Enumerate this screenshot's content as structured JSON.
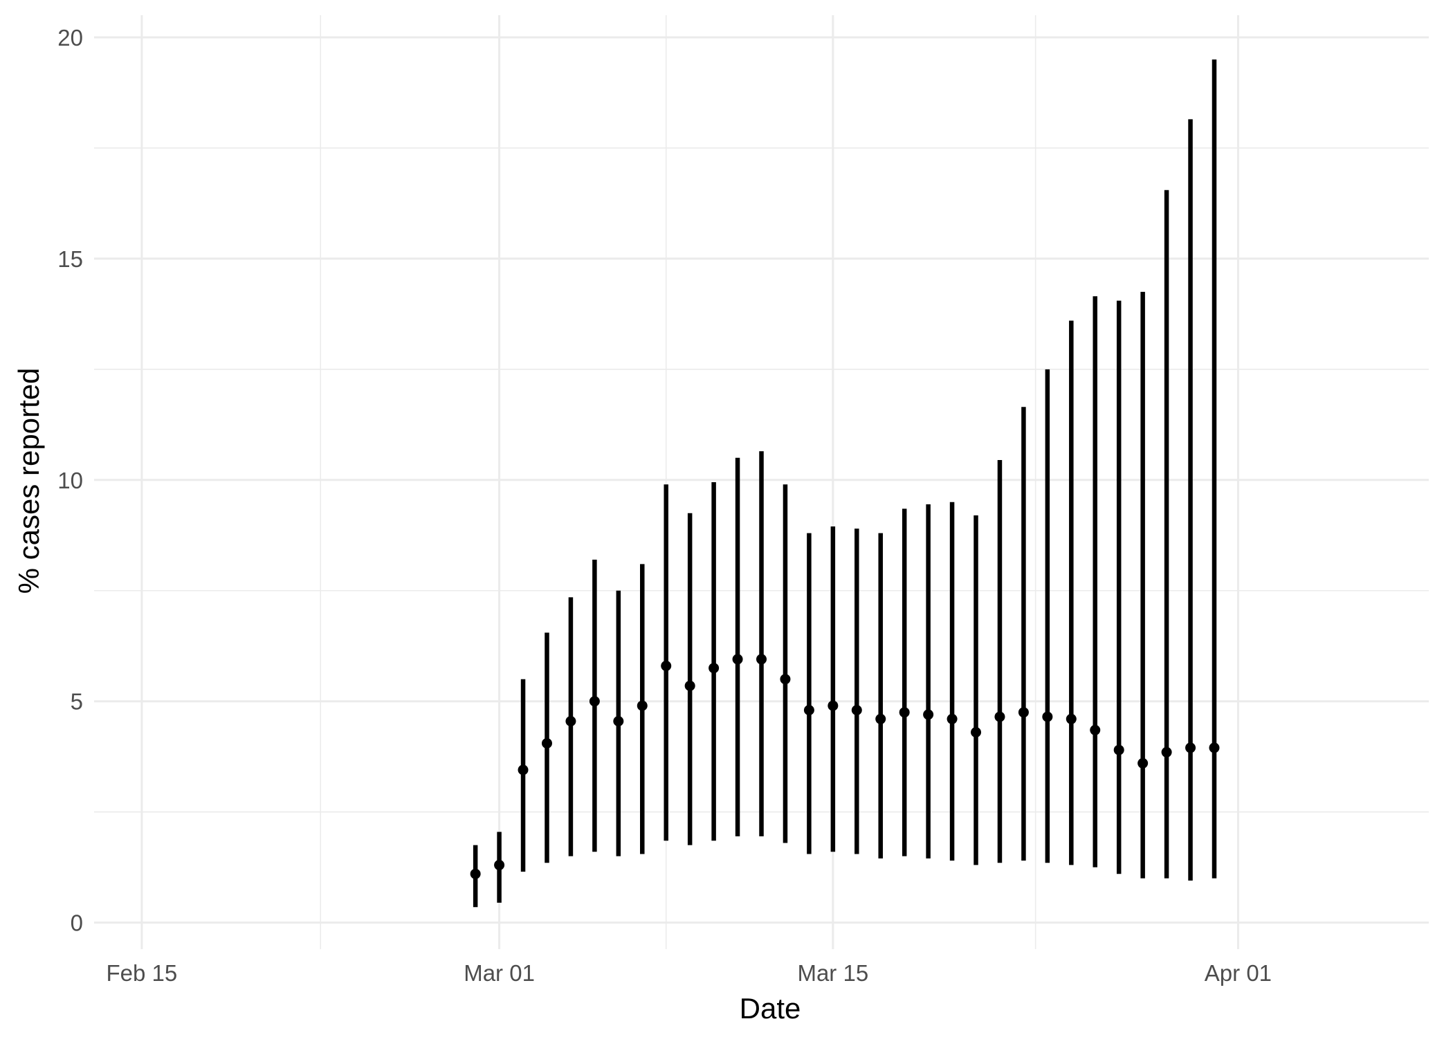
{
  "chart_data": {
    "type": "pointrange",
    "xlabel": "Date",
    "ylabel": "% cases reported",
    "x_ticks": [
      "Feb 15",
      "Mar 01",
      "Mar 15",
      "Apr 01"
    ],
    "y_ticks": [
      "0",
      "5",
      "10",
      "15",
      "20"
    ],
    "ylim": [
      -0.6,
      20.5
    ],
    "xlim": [
      "2020-02-13",
      "2020-04-09"
    ],
    "grid": true,
    "colors": {
      "marks": "#000000",
      "grid": "#ebebeb"
    },
    "series": [
      {
        "date": "2020-02-29",
        "mid": 1.1,
        "low": 0.35,
        "high": 1.75
      },
      {
        "date": "2020-03-01",
        "mid": 1.3,
        "low": 0.45,
        "high": 2.05
      },
      {
        "date": "2020-03-02",
        "mid": 3.45,
        "low": 1.15,
        "high": 5.5
      },
      {
        "date": "2020-03-03",
        "mid": 4.05,
        "low": 1.35,
        "high": 6.55
      },
      {
        "date": "2020-03-04",
        "mid": 4.55,
        "low": 1.5,
        "high": 7.35
      },
      {
        "date": "2020-03-05",
        "mid": 5.0,
        "low": 1.6,
        "high": 8.2
      },
      {
        "date": "2020-03-06",
        "mid": 4.55,
        "low": 1.5,
        "high": 7.5
      },
      {
        "date": "2020-03-07",
        "mid": 4.9,
        "low": 1.55,
        "high": 8.1
      },
      {
        "date": "2020-03-08",
        "mid": 5.8,
        "low": 1.85,
        "high": 9.9
      },
      {
        "date": "2020-03-09",
        "mid": 5.35,
        "low": 1.75,
        "high": 9.25
      },
      {
        "date": "2020-03-10",
        "mid": 5.75,
        "low": 1.85,
        "high": 9.95
      },
      {
        "date": "2020-03-11",
        "mid": 5.95,
        "low": 1.95,
        "high": 10.5
      },
      {
        "date": "2020-03-12",
        "mid": 5.95,
        "low": 1.95,
        "high": 10.65
      },
      {
        "date": "2020-03-13",
        "mid": 5.5,
        "low": 1.8,
        "high": 9.9
      },
      {
        "date": "2020-03-14",
        "mid": 4.8,
        "low": 1.55,
        "high": 8.8
      },
      {
        "date": "2020-03-15",
        "mid": 4.9,
        "low": 1.6,
        "high": 8.95
      },
      {
        "date": "2020-03-16",
        "mid": 4.8,
        "low": 1.55,
        "high": 8.9
      },
      {
        "date": "2020-03-17",
        "mid": 4.6,
        "low": 1.45,
        "high": 8.8
      },
      {
        "date": "2020-03-18",
        "mid": 4.75,
        "low": 1.5,
        "high": 9.35
      },
      {
        "date": "2020-03-19",
        "mid": 4.7,
        "low": 1.45,
        "high": 9.45
      },
      {
        "date": "2020-03-20",
        "mid": 4.6,
        "low": 1.4,
        "high": 9.5
      },
      {
        "date": "2020-03-21",
        "mid": 4.3,
        "low": 1.3,
        "high": 9.2
      },
      {
        "date": "2020-03-22",
        "mid": 4.65,
        "low": 1.35,
        "high": 10.45
      },
      {
        "date": "2020-03-23",
        "mid": 4.75,
        "low": 1.4,
        "high": 11.65
      },
      {
        "date": "2020-03-24",
        "mid": 4.65,
        "low": 1.35,
        "high": 12.5
      },
      {
        "date": "2020-03-25",
        "mid": 4.6,
        "low": 1.3,
        "high": 13.6
      },
      {
        "date": "2020-03-26",
        "mid": 4.35,
        "low": 1.25,
        "high": 14.15
      },
      {
        "date": "2020-03-27",
        "mid": 3.9,
        "low": 1.1,
        "high": 14.05
      },
      {
        "date": "2020-03-28",
        "mid": 3.6,
        "low": 1.0,
        "high": 14.25
      },
      {
        "date": "2020-03-29",
        "mid": 3.85,
        "low": 1.0,
        "high": 16.55
      },
      {
        "date": "2020-03-30",
        "mid": 3.95,
        "low": 0.95,
        "high": 18.15
      },
      {
        "date": "2020-03-31",
        "mid": 3.95,
        "low": 1.0,
        "high": 19.5
      }
    ]
  }
}
